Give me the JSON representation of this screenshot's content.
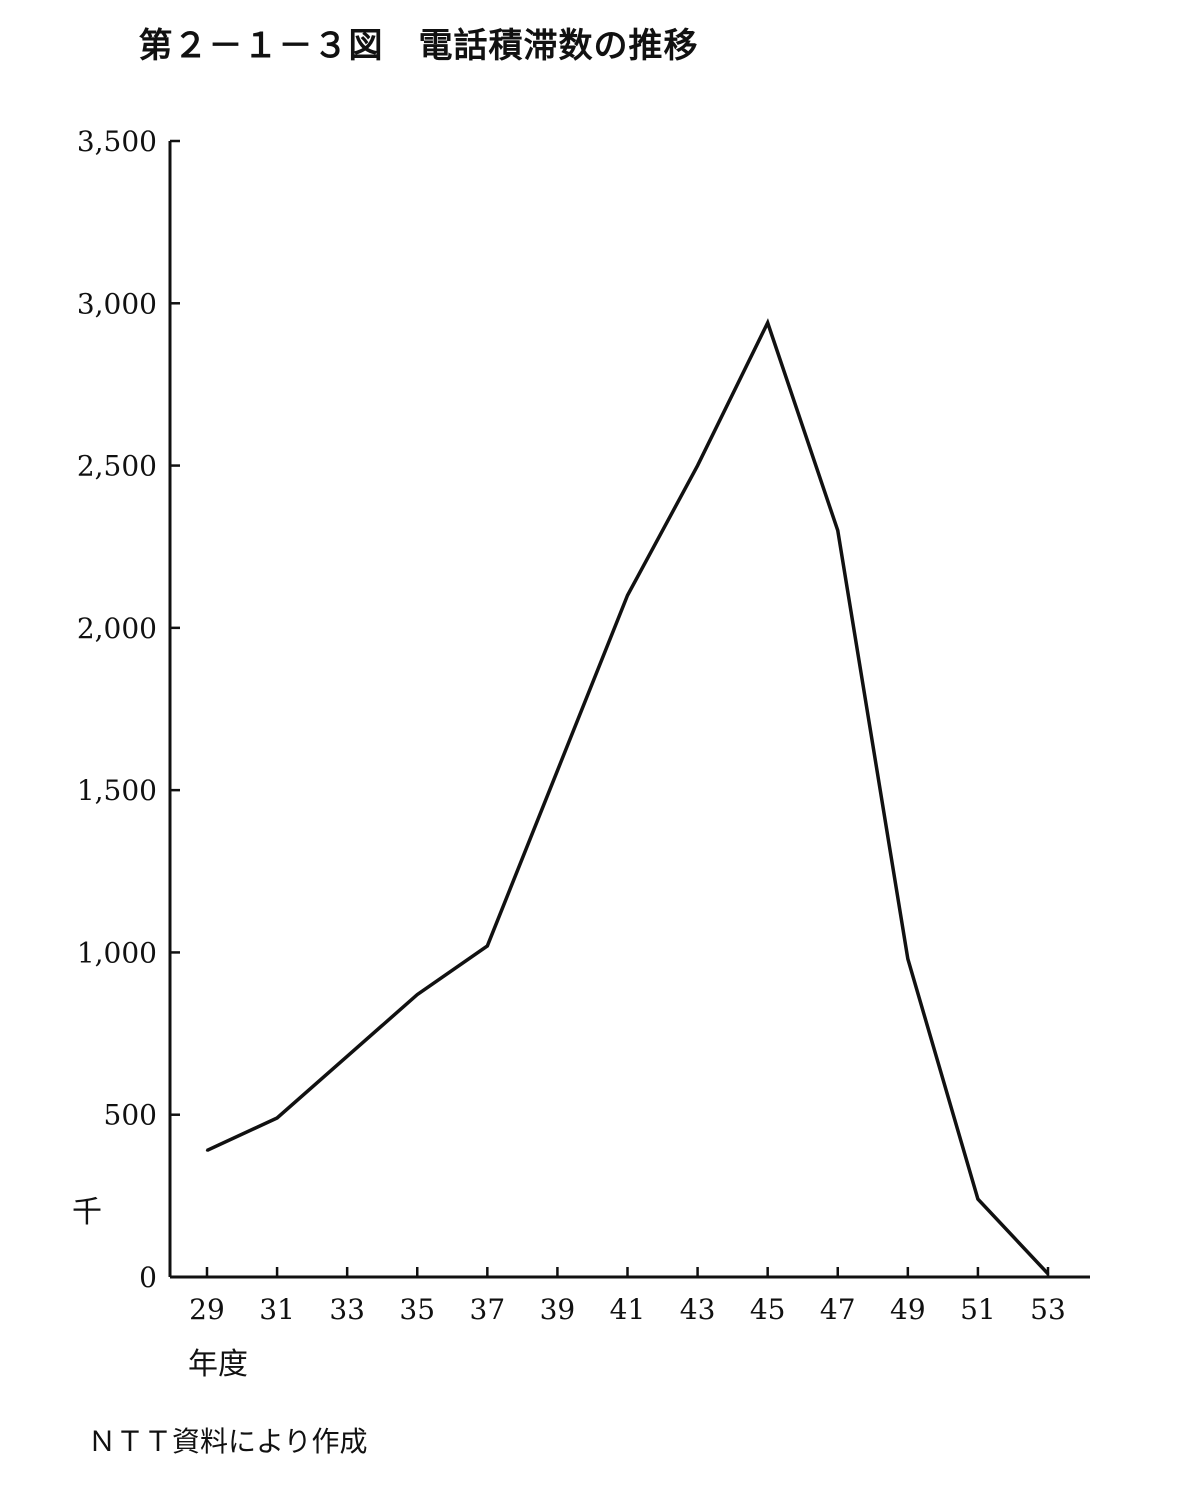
{
  "chart_data": {
    "type": "line",
    "title": "第２－１－３図　電話積滞数の推移",
    "xlabel": "年度",
    "ylabel": "千",
    "x": [
      29,
      31,
      33,
      35,
      37,
      39,
      41,
      43,
      45,
      47,
      49,
      51,
      53
    ],
    "x_tick_labels": [
      "29",
      "31",
      "33",
      "35",
      "37",
      "39",
      "41",
      "43",
      "45",
      "47",
      "49",
      "51",
      "53"
    ],
    "series": [
      {
        "values": [
          390,
          490,
          680,
          870,
          1020,
          1560,
          2100,
          2500,
          2940,
          2300,
          980,
          240,
          10
        ]
      }
    ],
    "y_tick_values": [
      0,
      500,
      1000,
      1500,
      2000,
      2500,
      3000,
      3500
    ],
    "y_tick_labels": [
      "0",
      "500",
      "1,000",
      "1,500",
      "2,000",
      "2,500",
      "3,000",
      "3,500"
    ],
    "ylim": [
      0,
      3500
    ],
    "grid": false,
    "line_color": "#111111"
  },
  "footer": {
    "source": "ＮＴＴ資料により作成"
  }
}
